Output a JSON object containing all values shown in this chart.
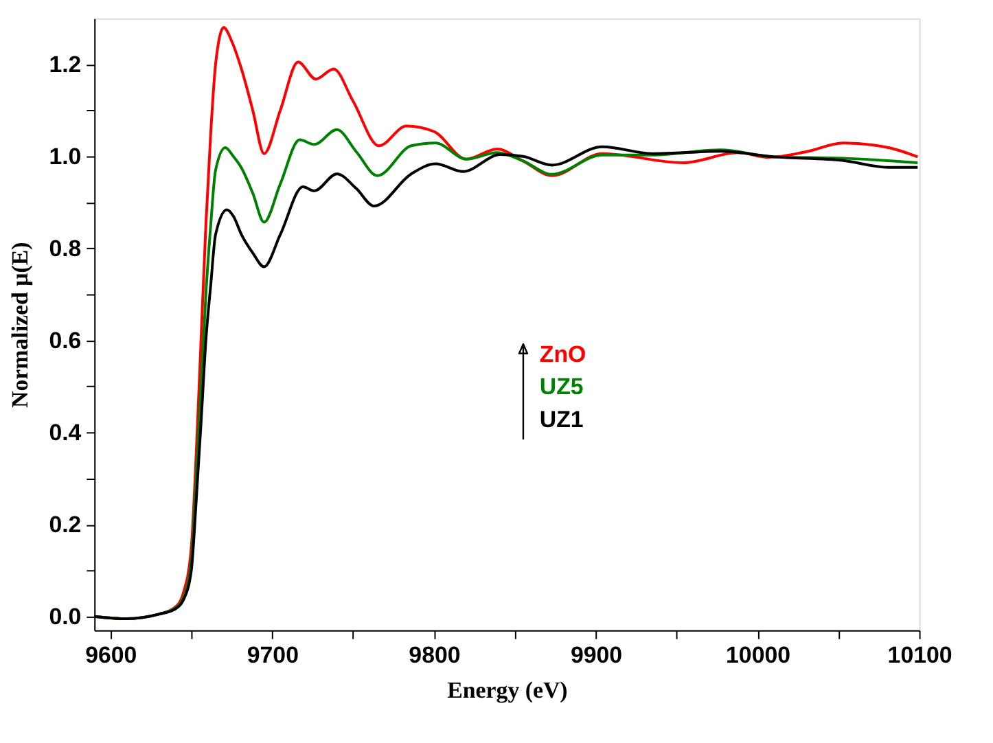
{
  "chart_data": {
    "type": "line",
    "xlabel": "Energy (eV)",
    "ylabel": "Normalized μ(E)",
    "xlim": [
      9590,
      10100
    ],
    "ylim": [
      -0.03,
      1.3
    ],
    "xticks": [
      9600,
      {
        "value": 9650,
        "label": null
      },
      9700,
      {
        "value": 9750,
        "label": null
      },
      9800,
      {
        "value": 9850,
        "label": null
      },
      9900,
      {
        "value": 9950,
        "label": null
      },
      10000,
      {
        "value": 10050,
        "label": null
      },
      10100
    ],
    "yticks": [
      {
        "value": 0,
        "label": "0.0"
      },
      {
        "value": 0.1,
        "label": null
      },
      {
        "value": 0.2,
        "label": "0.2"
      },
      {
        "value": 0.3,
        "label": null
      },
      {
        "value": 0.4,
        "label": "0.4"
      },
      {
        "value": 0.5,
        "label": null
      },
      {
        "value": 0.6,
        "label": "0.6"
      },
      {
        "value": 0.7,
        "label": null
      },
      {
        "value": 0.8,
        "label": "0.8"
      },
      {
        "value": 0.9,
        "label": null
      },
      {
        "value": 1.0,
        "label": "1.0"
      },
      {
        "value": 1.1,
        "label": null
      },
      {
        "value": 1.2,
        "label": "1.2"
      }
    ],
    "grid": false,
    "legend": "center",
    "line_style": "solid",
    "marker": "none",
    "series": [
      {
        "name": "ZnO",
        "color": "#ff0000",
        "x": [
          9590,
          9610,
          9630,
          9640,
          9645,
          9650,
          9653,
          9656,
          9659,
          9662,
          9665,
          9670,
          9675,
          9681,
          9688,
          9695,
          9705,
          9716,
          9727,
          9738,
          9750,
          9766,
          9783,
          9800,
          9820,
          9839,
          9855,
          9873,
          9904,
          9954,
          9988,
          10007,
          10030,
          10053,
          10081,
          10099
        ],
        "values": [
          0.0,
          -0.005,
          0.005,
          0.02,
          0.05,
          0.15,
          0.35,
          0.6,
          0.85,
          1.05,
          1.2,
          1.28,
          1.25,
          1.19,
          1.1,
          1.006,
          1.1,
          1.205,
          1.168,
          1.19,
          1.12,
          1.023,
          1.066,
          1.054,
          0.994,
          1.016,
          0.99,
          0.958,
          1.006,
          0.986,
          1.008,
          0.998,
          1.01,
          1.029,
          1.019,
          0.999
        ]
      },
      {
        "name": "UZ5",
        "color": "#008000",
        "x": [
          9590,
          9610,
          9630,
          9640,
          9645,
          9650,
          9653,
          9656,
          9659,
          9662,
          9665,
          9671,
          9676,
          9681,
          9688,
          9695,
          9705,
          9717,
          9726,
          9740,
          9752,
          9765,
          9786,
          9801,
          9820,
          9839,
          9855,
          9873,
          9904,
          9935,
          9977,
          10010,
          10053,
          10099
        ],
        "values": [
          0.0,
          -0.005,
          0.005,
          0.018,
          0.04,
          0.12,
          0.3,
          0.5,
          0.7,
          0.85,
          0.97,
          1.019,
          1.0,
          0.975,
          0.92,
          0.857,
          0.94,
          1.036,
          1.026,
          1.058,
          1.01,
          0.958,
          1.023,
          1.029,
          0.994,
          1.008,
          0.99,
          0.961,
          1.003,
          1.003,
          1.014,
          0.999,
          0.996,
          0.986
        ]
      },
      {
        "name": "UZ1",
        "color": "#000000",
        "x": [
          9590,
          9610,
          9630,
          9640,
          9645,
          9650,
          9653,
          9656,
          9659,
          9662,
          9665,
          9672,
          9676,
          9681,
          9688,
          9695,
          9705,
          9719,
          9726,
          9740,
          9752,
          9763,
          9786,
          9801,
          9818,
          9841,
          9855,
          9873,
          9904,
          9935,
          9977,
          10010,
          10053,
          10081,
          10099
        ],
        "values": [
          0.0,
          -0.005,
          0.005,
          0.016,
          0.035,
          0.1,
          0.25,
          0.42,
          0.6,
          0.72,
          0.83,
          0.884,
          0.87,
          0.83,
          0.79,
          0.76,
          0.83,
          0.934,
          0.925,
          0.962,
          0.93,
          0.892,
          0.962,
          0.984,
          0.967,
          1.004,
          1.0,
          0.981,
          1.021,
          1.006,
          1.011,
          0.999,
          0.991,
          0.976,
          0.976
        ]
      }
    ]
  }
}
